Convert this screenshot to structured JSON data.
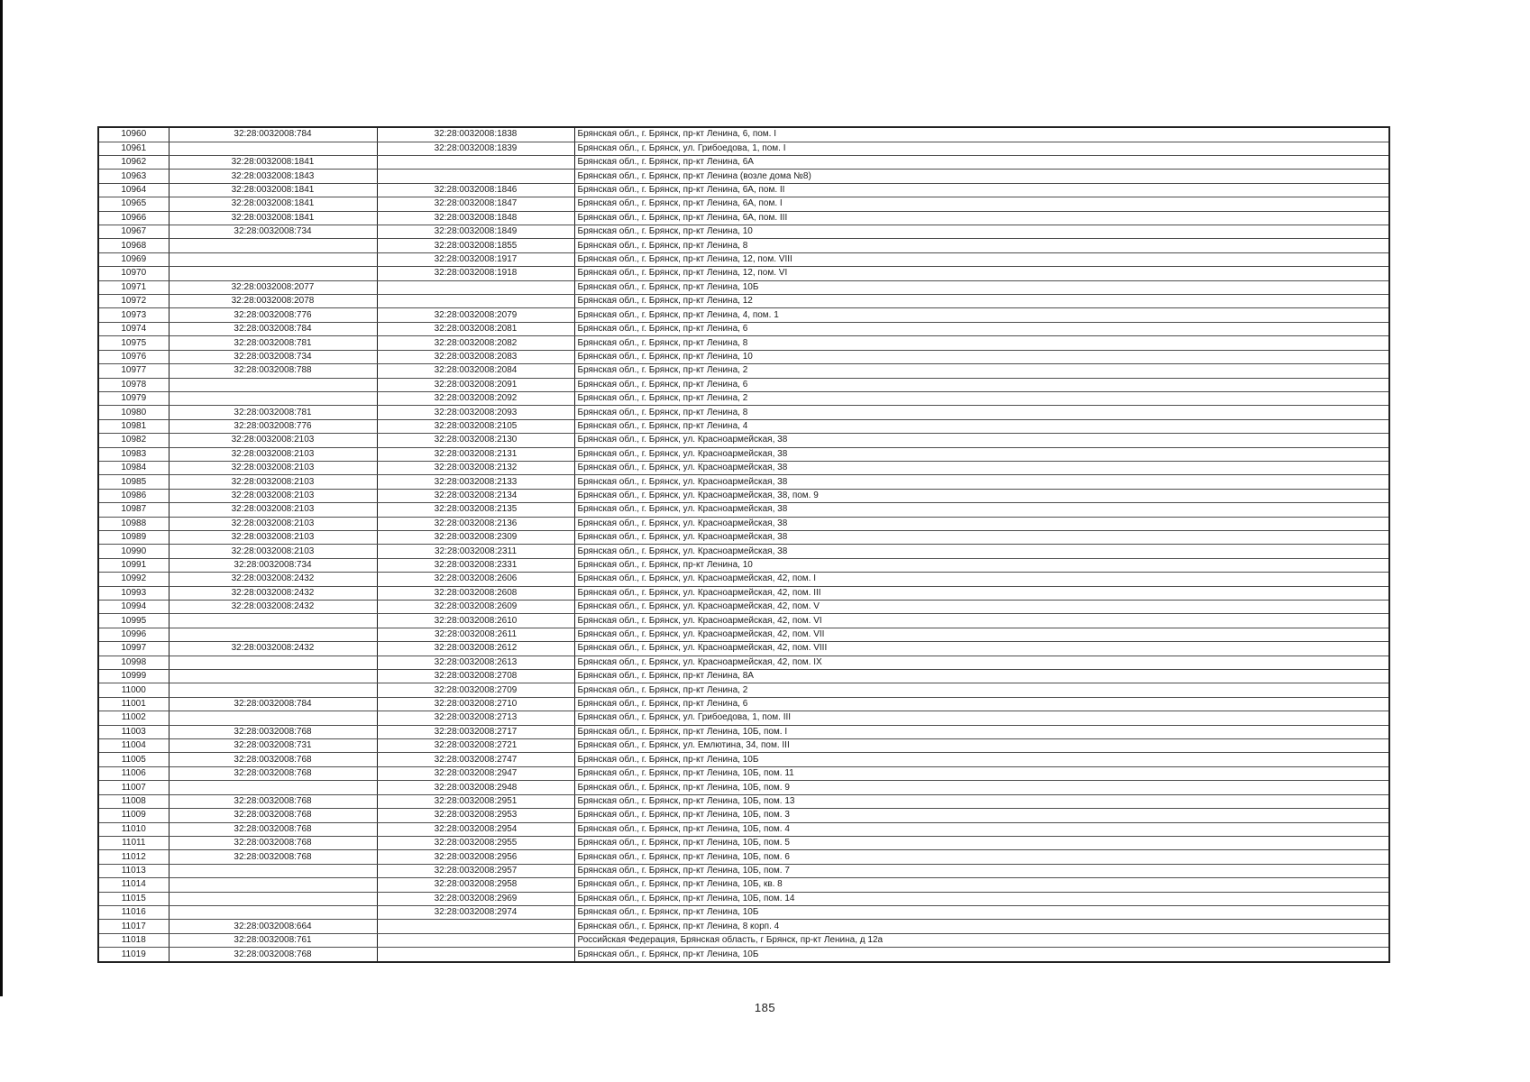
{
  "page": {
    "number": "185"
  },
  "table": {
    "column_semantics": [
      "record-number",
      "cadastral-number",
      "linked-cadastral-number",
      "address"
    ],
    "rows": [
      [
        "10960",
        "32:28:0032008:784",
        "32:28:0032008:1838",
        "Брянская обл., г. Брянск, пр-кт Ленина, 6, пом. I"
      ],
      [
        "10961",
        "",
        "32:28:0032008:1839",
        "Брянская обл., г. Брянск, ул. Грибоедова, 1, пом. I"
      ],
      [
        "10962",
        "32:28:0032008:1841",
        "",
        "Брянская обл., г. Брянск, пр-кт Ленина, 6А"
      ],
      [
        "10963",
        "32:28:0032008:1843",
        "",
        "Брянская обл., г. Брянск, пр-кт Ленина (возле дома №8)"
      ],
      [
        "10964",
        "32:28:0032008:1841",
        "32:28:0032008:1846",
        "Брянская обл., г. Брянск, пр-кт Ленина, 6А, пом. II"
      ],
      [
        "10965",
        "32:28:0032008:1841",
        "32:28:0032008:1847",
        "Брянская обл., г. Брянск, пр-кт Ленина, 6А, пом. I"
      ],
      [
        "10966",
        "32:28:0032008:1841",
        "32:28:0032008:1848",
        "Брянская обл., г. Брянск, пр-кт Ленина, 6А, пом. III"
      ],
      [
        "10967",
        "32:28:0032008:734",
        "32:28:0032008:1849",
        "Брянская обл., г. Брянск, пр-кт Ленина, 10"
      ],
      [
        "10968",
        "",
        "32:28:0032008:1855",
        "Брянская обл., г. Брянск, пр-кт Ленина, 8"
      ],
      [
        "10969",
        "",
        "32:28:0032008:1917",
        "Брянская обл., г. Брянск, пр-кт Ленина, 12, пом. VIII"
      ],
      [
        "10970",
        "",
        "32:28:0032008:1918",
        "Брянская обл., г. Брянск, пр-кт Ленина, 12, пом. VI"
      ],
      [
        "10971",
        "32:28:0032008:2077",
        "",
        "Брянская обл., г. Брянск, пр-кт Ленина, 10Б"
      ],
      [
        "10972",
        "32:28:0032008:2078",
        "",
        "Брянская обл., г. Брянск, пр-кт Ленина, 12"
      ],
      [
        "10973",
        "32:28:0032008:776",
        "32:28:0032008:2079",
        "Брянская обл., г. Брянск, пр-кт Ленина, 4, пом. 1"
      ],
      [
        "10974",
        "32:28:0032008:784",
        "32:28:0032008:2081",
        "Брянская обл., г. Брянск, пр-кт Ленина, 6"
      ],
      [
        "10975",
        "32:28:0032008:781",
        "32:28:0032008:2082",
        "Брянская обл., г. Брянск, пр-кт Ленина, 8"
      ],
      [
        "10976",
        "32:28:0032008:734",
        "32:28:0032008:2083",
        "Брянская обл., г. Брянск, пр-кт Ленина, 10"
      ],
      [
        "10977",
        "32:28:0032008:788",
        "32:28:0032008:2084",
        "Брянская обл., г. Брянск, пр-кт Ленина, 2"
      ],
      [
        "10978",
        "",
        "32:28:0032008:2091",
        "Брянская обл., г. Брянск, пр-кт Ленина, 6"
      ],
      [
        "10979",
        "",
        "32:28:0032008:2092",
        "Брянская обл., г. Брянск, пр-кт Ленина, 2"
      ],
      [
        "10980",
        "32:28:0032008:781",
        "32:28:0032008:2093",
        "Брянская обл., г. Брянск, пр-кт Ленина, 8"
      ],
      [
        "10981",
        "32:28:0032008:776",
        "32:28:0032008:2105",
        "Брянская обл., г. Брянск, пр-кт Ленина, 4"
      ],
      [
        "10982",
        "32:28:0032008:2103",
        "32:28:0032008:2130",
        "Брянская обл., г. Брянск, ул. Красноармейская, 38"
      ],
      [
        "10983",
        "32:28:0032008:2103",
        "32:28:0032008:2131",
        "Брянская обл., г. Брянск, ул. Красноармейская, 38"
      ],
      [
        "10984",
        "32:28:0032008:2103",
        "32:28:0032008:2132",
        "Брянская обл., г. Брянск, ул. Красноармейская, 38"
      ],
      [
        "10985",
        "32:28:0032008:2103",
        "32:28:0032008:2133",
        "Брянская обл., г. Брянск, ул. Красноармейская, 38"
      ],
      [
        "10986",
        "32:28:0032008:2103",
        "32:28:0032008:2134",
        "Брянская обл., г. Брянск, ул. Красноармейская, 38, пом. 9"
      ],
      [
        "10987",
        "32:28:0032008:2103",
        "32:28:0032008:2135",
        "Брянская обл., г. Брянск, ул. Красноармейская, 38"
      ],
      [
        "10988",
        "32:28:0032008:2103",
        "32:28:0032008:2136",
        "Брянская обл., г. Брянск, ул. Красноармейская, 38"
      ],
      [
        "10989",
        "32:28:0032008:2103",
        "32:28:0032008:2309",
        "Брянская обл., г. Брянск, ул. Красноармейская, 38"
      ],
      [
        "10990",
        "32:28:0032008:2103",
        "32:28:0032008:2311",
        "Брянская обл., г. Брянск, ул. Красноармейская, 38"
      ],
      [
        "10991",
        "32:28:0032008:734",
        "32:28:0032008:2331",
        "Брянская обл., г. Брянск, пр-кт Ленина, 10"
      ],
      [
        "10992",
        "32:28:0032008:2432",
        "32:28:0032008:2606",
        "Брянская обл., г. Брянск, ул. Красноармейская, 42, пом. I"
      ],
      [
        "10993",
        "32:28:0032008:2432",
        "32:28:0032008:2608",
        "Брянская обл., г. Брянск, ул. Красноармейская, 42, пом. III"
      ],
      [
        "10994",
        "32:28:0032008:2432",
        "32:28:0032008:2609",
        "Брянская обл., г. Брянск, ул. Красноармейская, 42, пом. V"
      ],
      [
        "10995",
        "",
        "32:28:0032008:2610",
        "Брянская обл., г. Брянск, ул. Красноармейская, 42, пом. VI"
      ],
      [
        "10996",
        "",
        "32:28:0032008:2611",
        "Брянская обл., г. Брянск, ул. Красноармейская, 42, пом. VII"
      ],
      [
        "10997",
        "32:28:0032008:2432",
        "32:28:0032008:2612",
        "Брянская обл., г. Брянск, ул. Красноармейская, 42, пом. VIII"
      ],
      [
        "10998",
        "",
        "32:28:0032008:2613",
        "Брянская обл., г. Брянск, ул. Красноармейская, 42, пом. IX"
      ],
      [
        "10999",
        "",
        "32:28:0032008:2708",
        "Брянская обл., г. Брянск, пр-кт Ленина, 8А"
      ],
      [
        "11000",
        "",
        "32:28:0032008:2709",
        "Брянская обл., г. Брянск, пр-кт Ленина, 2"
      ],
      [
        "11001",
        "32:28:0032008:784",
        "32:28:0032008:2710",
        "Брянская обл., г. Брянск, пр-кт Ленина, 6"
      ],
      [
        "11002",
        "",
        "32:28:0032008:2713",
        "Брянская обл., г. Брянск, ул. Грибоедова, 1, пом. III"
      ],
      [
        "11003",
        "32:28:0032008:768",
        "32:28:0032008:2717",
        "Брянская обл., г. Брянск, пр-кт Ленина, 10Б, пом. I"
      ],
      [
        "11004",
        "32:28:0032008:731",
        "32:28:0032008:2721",
        "Брянская обл., г. Брянск, ул. Емлютина, 34, пом. III"
      ],
      [
        "11005",
        "32:28:0032008:768",
        "32:28:0032008:2747",
        "Брянская обл., г. Брянск, пр-кт Ленина, 10Б"
      ],
      [
        "11006",
        "32:28:0032008:768",
        "32:28:0032008:2947",
        "Брянская обл., г. Брянск, пр-кт Ленина, 10Б, пом. 11"
      ],
      [
        "11007",
        "",
        "32:28:0032008:2948",
        "Брянская обл., г. Брянск, пр-кт Ленина, 10Б, пом. 9"
      ],
      [
        "11008",
        "32:28:0032008:768",
        "32:28:0032008:2951",
        "Брянская обл., г. Брянск, пр-кт Ленина, 10Б, пом. 13"
      ],
      [
        "11009",
        "32:28:0032008:768",
        "32:28:0032008:2953",
        "Брянская обл., г. Брянск, пр-кт Ленина, 10Б, пом. 3"
      ],
      [
        "11010",
        "32:28:0032008:768",
        "32:28:0032008:2954",
        "Брянская обл., г. Брянск, пр-кт Ленина, 10Б, пом. 4"
      ],
      [
        "11011",
        "32:28:0032008:768",
        "32:28:0032008:2955",
        "Брянская обл., г. Брянск, пр-кт Ленина, 10Б, пом. 5"
      ],
      [
        "11012",
        "32:28:0032008:768",
        "32:28:0032008:2956",
        "Брянская обл., г. Брянск, пр-кт Ленина, 10Б, пом. 6"
      ],
      [
        "11013",
        "",
        "32:28:0032008:2957",
        "Брянская обл., г. Брянск, пр-кт Ленина, 10Б, пом. 7"
      ],
      [
        "11014",
        "",
        "32:28:0032008:2958",
        "Брянская обл., г. Брянск, пр-кт Ленина, 10Б, кв. 8"
      ],
      [
        "11015",
        "",
        "32:28:0032008:2969",
        "Брянская обл., г. Брянск, пр-кт Ленина, 10Б, пом. 14"
      ],
      [
        "11016",
        "",
        "32:28:0032008:2974",
        "Брянская обл., г. Брянск, пр-кт Ленина, 10Б"
      ],
      [
        "11017",
        "32:28:0032008:664",
        "",
        "Брянская обл., г. Брянск, пр-кт Ленина, 8 корп. 4"
      ],
      [
        "11018",
        "32:28:0032008:761",
        "",
        "Российская Федерация, Брянская область, г Брянск, пр-кт Ленина, д 12а"
      ],
      [
        "11019",
        "32:28:0032008:768",
        "",
        "Брянская обл., г. Брянск, пр-кт Ленина, 10Б"
      ]
    ]
  }
}
